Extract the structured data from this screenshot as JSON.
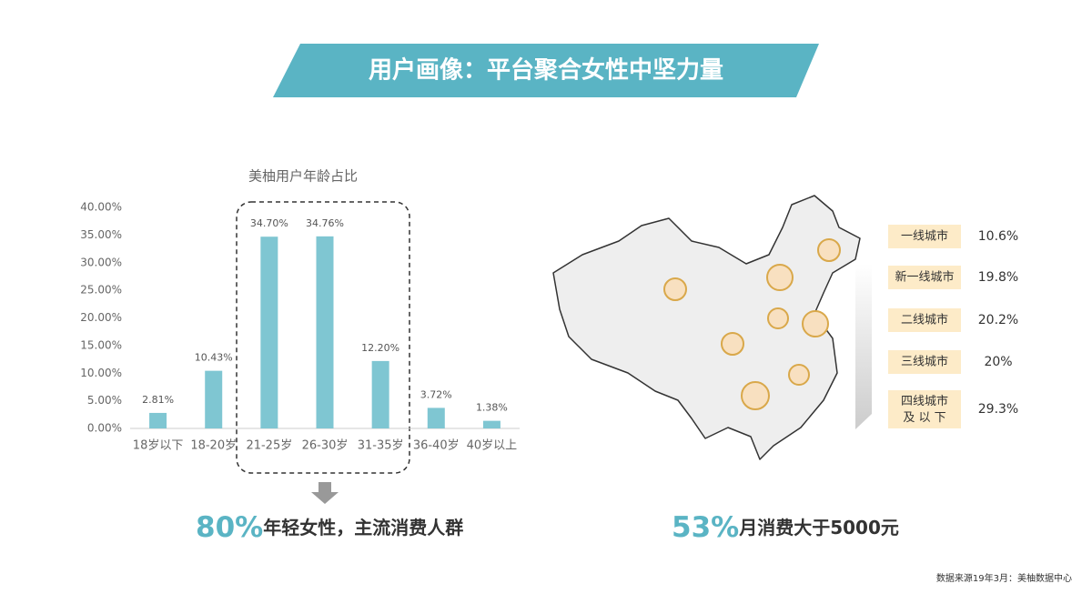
{
  "header": {
    "title": "用户画像：平台聚合女性中坚力量"
  },
  "chart_data": {
    "type": "bar",
    "title": "美柚用户年龄占比",
    "categories": [
      "18岁以下",
      "18-20岁",
      "21-25岁",
      "26-30岁",
      "31-35岁",
      "36-40岁",
      "40岁以上"
    ],
    "values": [
      2.81,
      10.43,
      34.7,
      34.76,
      12.2,
      3.72,
      1.38
    ],
    "value_labels": [
      "2.81%",
      "10.43%",
      "34.70%",
      "34.76%",
      "12.20%",
      "3.72%",
      "1.38%"
    ],
    "color": "#7fc6d2",
    "ylim": [
      0,
      40
    ],
    "yticks": [
      {
        "value": 0,
        "label": "0.00%"
      },
      {
        "value": 5,
        "label": "5.00%"
      },
      {
        "value": 10,
        "label": "10.00%"
      },
      {
        "value": 15,
        "label": "15.00%"
      },
      {
        "value": 20,
        "label": "20.00%"
      },
      {
        "value": 25,
        "label": "25.00%"
      },
      {
        "value": 30,
        "label": "30.00%"
      },
      {
        "value": 35,
        "label": "35.00%"
      },
      {
        "value": 40,
        "label": "40.00%"
      }
    ],
    "grid": false
  },
  "callouts": [
    {
      "highlight": "80%",
      "text": "年轻女性，主流消费人群"
    },
    {
      "highlight": "53%",
      "text": "月消费大于5000元"
    }
  ],
  "city_tiers": [
    {
      "label": "一线城市",
      "share": "10.6%"
    },
    {
      "label": "新一线城市",
      "share": "19.8%"
    },
    {
      "label": "二线城市",
      "share": "20.2%"
    },
    {
      "label": "三线城市",
      "share": "20%"
    },
    {
      "label": "四线城市及 以 下",
      "share": "29.3%"
    }
  ],
  "source": "数据来源19年3月：美柚数据中心"
}
